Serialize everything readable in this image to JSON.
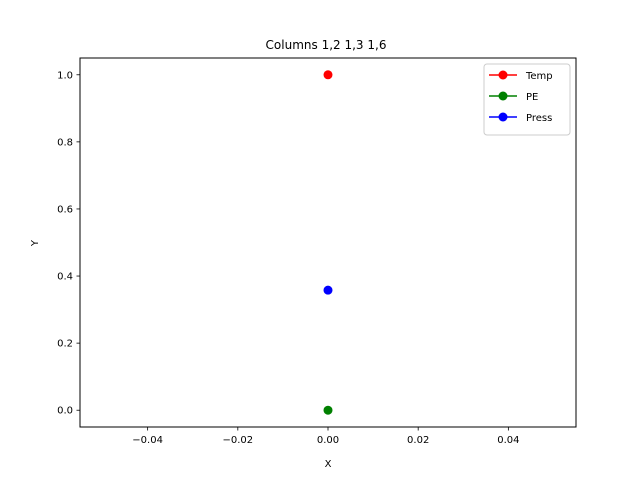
{
  "chart_data": {
    "type": "line",
    "title": "Columns 1,2 1,3 1,6",
    "xlabel": "X",
    "ylabel": "Y",
    "xlim": [
      -0.055,
      0.055
    ],
    "ylim": [
      -0.05,
      1.05
    ],
    "xticks": [
      -0.04,
      -0.02,
      0.0,
      0.02,
      0.04
    ],
    "xtick_labels": [
      "−0.04",
      "−0.02",
      "0.00",
      "0.02",
      "0.04"
    ],
    "yticks": [
      0.0,
      0.2,
      0.4,
      0.6,
      0.8,
      1.0
    ],
    "ytick_labels": [
      "0.0",
      "0.2",
      "0.4",
      "0.6",
      "0.8",
      "1.0"
    ],
    "grid": false,
    "legend_position": "top-right",
    "series": [
      {
        "name": "Temp",
        "color": "#ff0000",
        "marker": "circle",
        "x": [
          0.0
        ],
        "y": [
          1.0
        ]
      },
      {
        "name": "PE",
        "color": "#008000",
        "marker": "circle",
        "x": [
          0.0
        ],
        "y": [
          0.0
        ]
      },
      {
        "name": "Press",
        "color": "#0000ff",
        "marker": "circle",
        "x": [
          0.0
        ],
        "y": [
          0.358
        ]
      }
    ]
  }
}
